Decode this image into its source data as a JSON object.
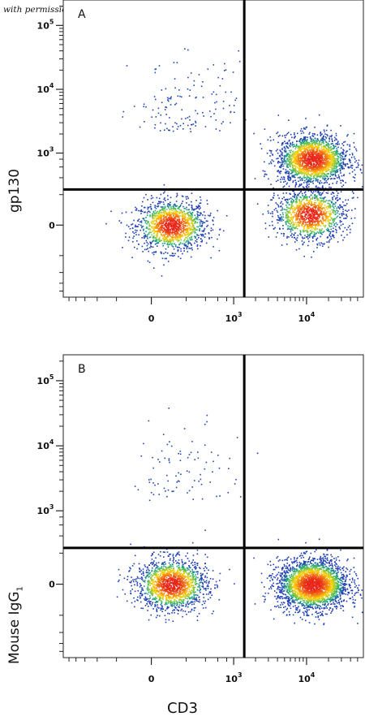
{
  "credit": "with permission from R&D Systems",
  "x_axis_label": "CD3",
  "chart_data": [
    {
      "type": "scatter",
      "panel_label": "A",
      "ylabel": "gp130",
      "ylabel_sub": "",
      "xlabel": "CD3",
      "x_scale": "biexponential",
      "y_scale": "biexponential",
      "x_ticks": [
        {
          "value": 0,
          "label": "0"
        },
        {
          "value": 1000,
          "label": "10",
          "exp": "3"
        },
        {
          "value": 10000,
          "label": "10",
          "exp": "4"
        }
      ],
      "y_ticks": [
        {
          "value": 0,
          "label": "0"
        },
        {
          "value": 1000,
          "label": "10",
          "exp": "3"
        },
        {
          "value": 10000,
          "label": "10",
          "exp": "4"
        },
        {
          "value": 100000,
          "label": "10",
          "exp": "5"
        }
      ],
      "quadrant_gate": {
        "x": 1400,
        "y": 250
      },
      "populations": [
        {
          "name": "",
          "x_center": 100,
          "y_center": 0,
          "count": 1400,
          "dense": true
        },
        {
          "name": "",
          "x_center": 12000,
          "y_center": 800,
          "count": 2000,
          "dense": true
        },
        {
          "name": "",
          "x_center": 11000,
          "y_center": 60,
          "count": 1200,
          "dense": true
        },
        {
          "name": "",
          "x_center": 200,
          "y_center": 3000,
          "count": 140,
          "dense": false
        }
      ]
    },
    {
      "type": "scatter",
      "panel_label": "B",
      "ylabel": "Mouse IgG",
      "ylabel_sub": "1",
      "xlabel": "CD3",
      "x_scale": "biexponential",
      "y_scale": "biexponential",
      "x_ticks": [
        {
          "value": 0,
          "label": "0"
        },
        {
          "value": 1000,
          "label": "10",
          "exp": "3"
        },
        {
          "value": 10000,
          "label": "10",
          "exp": "4"
        }
      ],
      "y_ticks": [
        {
          "value": 0,
          "label": "0"
        },
        {
          "value": 1000,
          "label": "10",
          "exp": "3"
        },
        {
          "value": 10000,
          "label": "10",
          "exp": "4"
        },
        {
          "value": 100000,
          "label": "10",
          "exp": "5"
        }
      ],
      "quadrant_gate": {
        "x": 1400,
        "y": 250
      },
      "populations": [
        {
          "name": "",
          "x_center": 100,
          "y_center": 0,
          "count": 1600,
          "dense": true
        },
        {
          "name": "",
          "x_center": 12000,
          "y_center": 0,
          "count": 2600,
          "dense": true
        },
        {
          "name": "",
          "x_center": 200,
          "y_center": 2000,
          "count": 90,
          "dense": false
        }
      ]
    }
  ],
  "colors": {
    "low": "#1f3fb4",
    "mid": "#22b573",
    "high": "#ffd400",
    "peak": "#e8261a",
    "gate": "#000000"
  }
}
